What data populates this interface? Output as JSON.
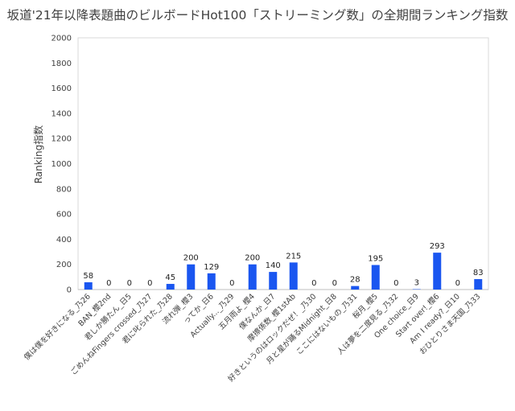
{
  "chart_data": {
    "type": "bar",
    "title": "坂道'21年以降表題曲のビルボードHot100「ストリーミング数」の全期間ランキング指数",
    "xlabel": "",
    "ylabel": "Ranking指数",
    "ylim": [
      0,
      2000
    ],
    "yticks": [
      0,
      200,
      400,
      600,
      800,
      1000,
      1200,
      1400,
      1600,
      1800,
      2000
    ],
    "grid": false,
    "legend": "none",
    "bar_color": "#1a56f0",
    "categories": [
      "僕は僕を好きになる_乃26",
      "BAN_櫻2nd",
      "君しか勝たん_日5",
      "ごめんねFingers crossed_乃27",
      "君に叱られた_乃28",
      "流れ弾_櫻3",
      "ってか_日6",
      "Actually..._乃29",
      "五月雨よ_櫻4",
      "僕なんか_日7",
      "摩擦係数_櫻1stAb",
      "好きというのはロックだぜ！_乃30",
      "月と星が踊るMidnight_日8",
      "ここにはないもの_乃31",
      "桜月_櫻5",
      "人は夢を二度見る_乃32",
      "One choice_日9",
      "Start over!_櫻6",
      "Am I ready?_日10",
      "おひとりさま天国_乃33"
    ],
    "values": [
      58,
      0,
      0,
      0,
      45,
      200,
      129,
      0,
      200,
      140,
      215,
      0,
      0,
      28,
      195,
      0,
      3,
      293,
      0,
      83
    ]
  }
}
